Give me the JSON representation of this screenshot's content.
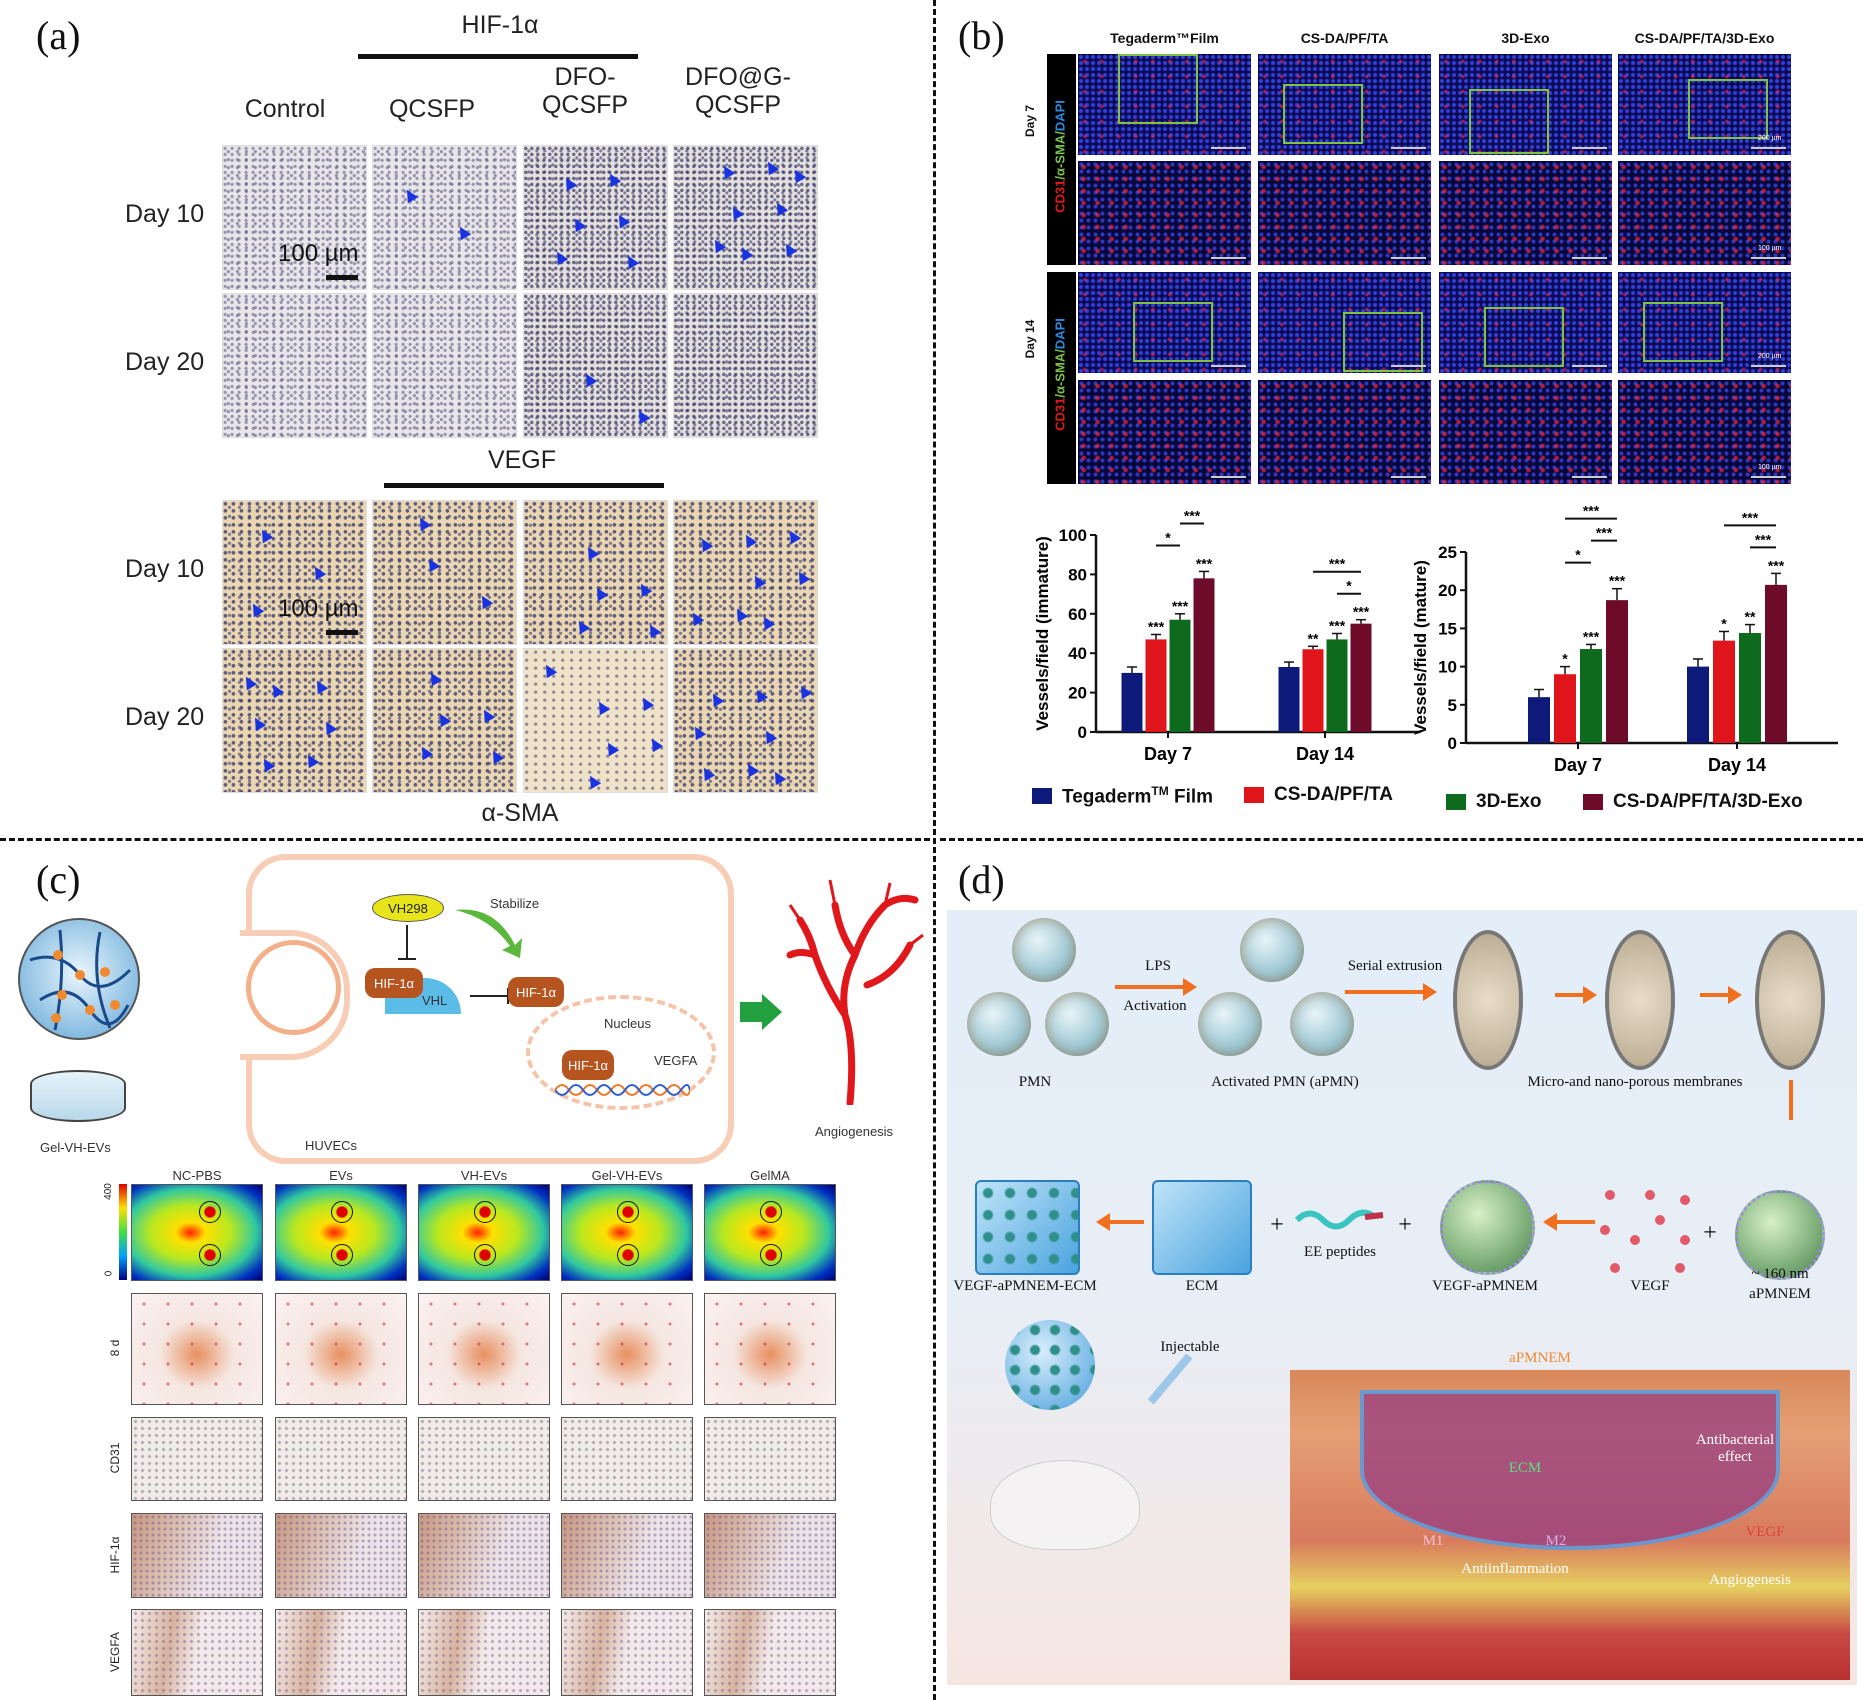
{
  "panel_a": {
    "label": "(a)",
    "hif_title": "HIF-1α",
    "vegf_title": "VEGF",
    "bottom_title": "α-SMA",
    "columns": [
      "Control",
      "QCSFP",
      "DFO-\nQCSFP",
      "DFO@G-\nQCSFP"
    ],
    "rows": [
      "Day 10",
      "Day 20",
      "Day 10",
      "Day 20"
    ],
    "scale_bar": "100 µm"
  },
  "panel_b": {
    "label": "(b)",
    "columns": [
      "Tegaderm™Film",
      "CS-DA/PF/TA",
      "3D-Exo",
      "CS-DA/PF/TA/3D-Exo"
    ],
    "row_days": [
      "Day 7",
      "Day 14"
    ],
    "stain_parts": [
      "CD31",
      "/α-SMA/",
      "DAPI"
    ],
    "scale_200": "200 µm",
    "scale_100": "100 µm",
    "legend": [
      {
        "label": "Tegaderm",
        "sup": "TM",
        "suffix": " Film",
        "color": "#0d1a7a"
      },
      {
        "label": "CS-DA/PF/TA",
        "color": "#e0141b"
      },
      {
        "label": "3D-Exo",
        "color": "#0e6b1e"
      },
      {
        "label": "CS-DA/PF/TA/3D-Exo",
        "color": "#6e0a2a"
      }
    ]
  },
  "chart_data": [
    {
      "type": "bar",
      "ylabel": "Vessels/field (immature)",
      "categories": [
        "Day 7",
        "Day 14"
      ],
      "ylim": [
        0,
        100
      ],
      "yticks": [
        0,
        20,
        40,
        60,
        80,
        100
      ],
      "series": [
        {
          "name": "Tegaderm™ Film",
          "color": "#0d1a7a",
          "values": [
            30,
            33
          ],
          "errors": [
            3,
            2.5
          ],
          "sig": [
            "",
            ""
          ]
        },
        {
          "name": "CS-DA/PF/TA",
          "color": "#e0141b",
          "values": [
            47,
            42
          ],
          "errors": [
            2.5,
            1.5
          ],
          "sig": [
            "***",
            "**"
          ]
        },
        {
          "name": "3D-Exo",
          "color": "#0e6b1e",
          "values": [
            57,
            47
          ],
          "errors": [
            3,
            3
          ],
          "sig": [
            "***",
            "***"
          ]
        },
        {
          "name": "CS-DA/PF/TA/3D-Exo",
          "color": "#6e0a2a",
          "values": [
            78,
            55
          ],
          "errors": [
            3.5,
            2
          ],
          "sig": [
            "***",
            "***"
          ]
        }
      ],
      "brackets": [
        [
          {
            "from": 1,
            "to": 2,
            "label": "*"
          },
          {
            "from": 2,
            "to": 3,
            "label": "***"
          },
          {
            "from": 1,
            "to": 3,
            "label": "***"
          }
        ],
        [
          {
            "from": 2,
            "to": 3,
            "label": "*"
          },
          {
            "from": 1,
            "to": 3,
            "label": "***"
          }
        ]
      ]
    },
    {
      "type": "bar",
      "ylabel": "Vessels/field (mature)",
      "categories": [
        "Day 7",
        "Day 14"
      ],
      "ylim": [
        0,
        25
      ],
      "yticks": [
        0,
        5,
        10,
        15,
        20,
        25
      ],
      "series": [
        {
          "name": "Tegaderm™ Film",
          "color": "#0d1a7a",
          "values": [
            6,
            10
          ],
          "errors": [
            1,
            1
          ],
          "sig": [
            "",
            ""
          ]
        },
        {
          "name": "CS-DA/PF/TA",
          "color": "#e0141b",
          "values": [
            9,
            13.4
          ],
          "errors": [
            1,
            1.2
          ],
          "sig": [
            "*",
            "*"
          ]
        },
        {
          "name": "3D-Exo",
          "color": "#0e6b1e",
          "values": [
            12.3,
            14.4
          ],
          "errors": [
            0.6,
            1.1
          ],
          "sig": [
            "***",
            "**"
          ]
        },
        {
          "name": "CS-DA/PF/TA/3D-Exo",
          "color": "#6e0a2a",
          "values": [
            18.7,
            20.7
          ],
          "errors": [
            1.5,
            1.5
          ],
          "sig": [
            "***",
            "***"
          ]
        }
      ],
      "brackets": [
        [
          {
            "from": 1,
            "to": 2,
            "label": "*"
          },
          {
            "from": 2,
            "to": 3,
            "label": "***"
          },
          {
            "from": 1,
            "to": 3,
            "label": "***"
          }
        ],
        [
          {
            "from": 2,
            "to": 3,
            "label": "***"
          },
          {
            "from": 1,
            "to": 3,
            "label": "***"
          }
        ]
      ]
    }
  ],
  "panel_c": {
    "label": "(c)",
    "gel": "Gel-VH-EVs",
    "huvecs": "HUVECs",
    "vh298": "VH298",
    "stabilize": "Stabilize",
    "hif": "HIF-1α",
    "vhl": "VHL",
    "nucleus": "Nucleus",
    "vegfa": "VEGFA",
    "angiogenesis": "Angiogenesis",
    "columns": [
      "NC-PBS",
      "EVs",
      "VH-EVs",
      "Gel-VH-EVs",
      "GelMA"
    ],
    "rows": [
      "8 d",
      "CD31",
      "HIF-1α",
      "VEGFA"
    ],
    "colorbar_max": "400",
    "colorbar_min": "0"
  },
  "panel_d": {
    "label": "(d)",
    "lps": "LPS",
    "activation": "Activation",
    "pmn": "PMN",
    "apmn": "Activated PMN (aPMN)",
    "serial": "Serial extrusion",
    "membranes": "Micro-and nano-porous membranes",
    "ecm_final": "VEGF-aPMNEM-ECM",
    "ecm": "ECM",
    "ee": "EE peptides",
    "vegf_apmnem": "VEGF-aPMNEM",
    "vegf": "VEGF",
    "size": "~ 160 nm",
    "apmnem": "aPMNEM",
    "plus": "+",
    "injectable": "Injectable",
    "apmnem_wound": "aPMNEM",
    "antibacterial": "Antibacterial\neffect",
    "ecm_wound": "ECM",
    "m1": "M1",
    "m2": "M2",
    "antiinfl": "Antiinflammation",
    "vegf_wound": "VEGF",
    "angio": "Angiogenesis"
  }
}
